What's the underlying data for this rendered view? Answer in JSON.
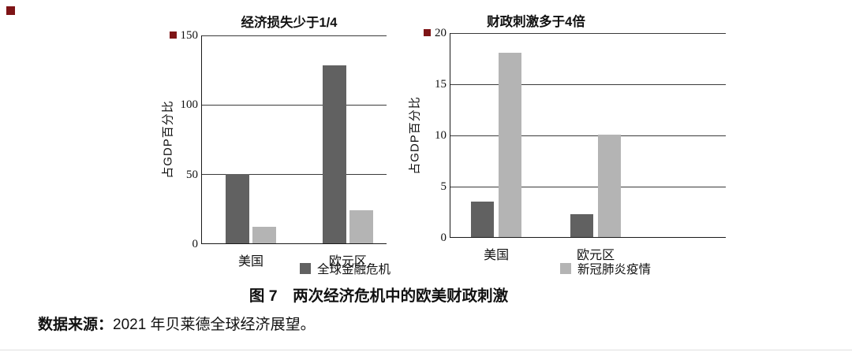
{
  "figure": {
    "caption": "图 7　两次经济危机中的欧美财政刺激",
    "source_label": "数据来源：",
    "source_text": "2021 年贝莱德全球经济展望。"
  },
  "legend": [
    {
      "label": "全球金融危机",
      "color": "#616161"
    },
    {
      "label": "新冠肺炎疫情",
      "color": "#b4b4b4"
    }
  ],
  "chart_data": [
    {
      "type": "bar",
      "title": "经济损失少于1/4",
      "ylabel": "占GDP百分比",
      "xlabel": "",
      "categories": [
        "美国",
        "欧元区"
      ],
      "series": [
        {
          "name": "全球金融危机",
          "values": [
            50,
            128
          ]
        },
        {
          "name": "新冠肺炎疫情",
          "values": [
            12,
            24
          ]
        }
      ],
      "ylim": [
        0,
        150
      ],
      "yticks": [
        0,
        50,
        100,
        150
      ],
      "grid": true,
      "legend_position": "below"
    },
    {
      "type": "bar",
      "title": "财政刺激多于4倍",
      "ylabel": "占GDP百分比",
      "xlabel": "",
      "categories": [
        "美国",
        "欧元区"
      ],
      "series": [
        {
          "name": "全球金融危机",
          "values": [
            3.5,
            2.2
          ]
        },
        {
          "name": "新冠肺炎疫情",
          "values": [
            18,
            10
          ]
        }
      ],
      "ylim": [
        0,
        20
      ],
      "yticks": [
        0,
        5,
        10,
        15,
        20
      ],
      "grid": true,
      "legend_position": "below"
    }
  ],
  "artifacts": {
    "marker_color": "#7e1416"
  }
}
